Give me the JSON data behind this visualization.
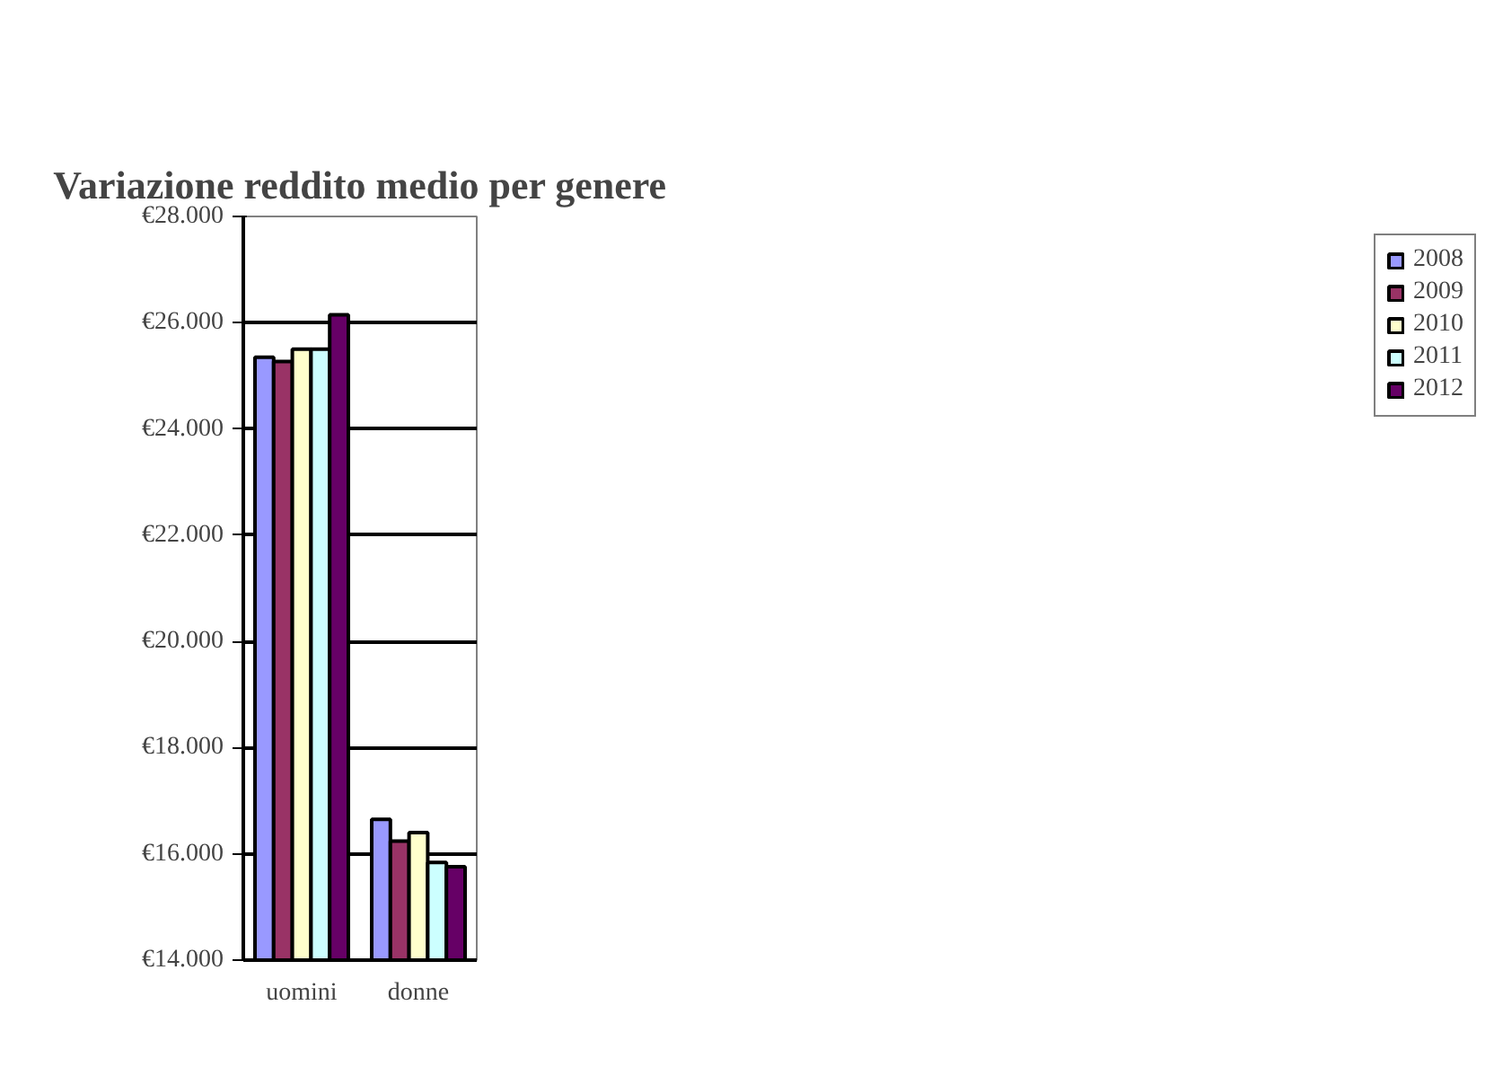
{
  "chart_data": {
    "type": "bar",
    "title": "Variazione reddito medio per genere",
    "categories": [
      "uomini",
      "donne"
    ],
    "series": [
      {
        "name": "2008",
        "color": "#9999ff",
        "values": [
          25350,
          16650
        ]
      },
      {
        "name": "2009",
        "color": "#993366",
        "values": [
          25270,
          16240
        ]
      },
      {
        "name": "2010",
        "color": "#ffffcc",
        "values": [
          25500,
          16400
        ]
      },
      {
        "name": "2011",
        "color": "#ccffff",
        "values": [
          25500,
          15840
        ]
      },
      {
        "name": "2012",
        "color": "#660066",
        "values": [
          26150,
          15760
        ]
      }
    ],
    "ylim": [
      14000,
      28000
    ],
    "yticks": [
      {
        "value": 14000,
        "label": "€14.000"
      },
      {
        "value": 16000,
        "label": "€16.000"
      },
      {
        "value": 18000,
        "label": "€18.000"
      },
      {
        "value": 20000,
        "label": "€20.000"
      },
      {
        "value": 22000,
        "label": "€22.000"
      },
      {
        "value": 24000,
        "label": "€24.000"
      },
      {
        "value": 26000,
        "label": "€26.000"
      },
      {
        "value": 28000,
        "label": "€28.000"
      }
    ],
    "grid": "y",
    "legend": "right"
  }
}
